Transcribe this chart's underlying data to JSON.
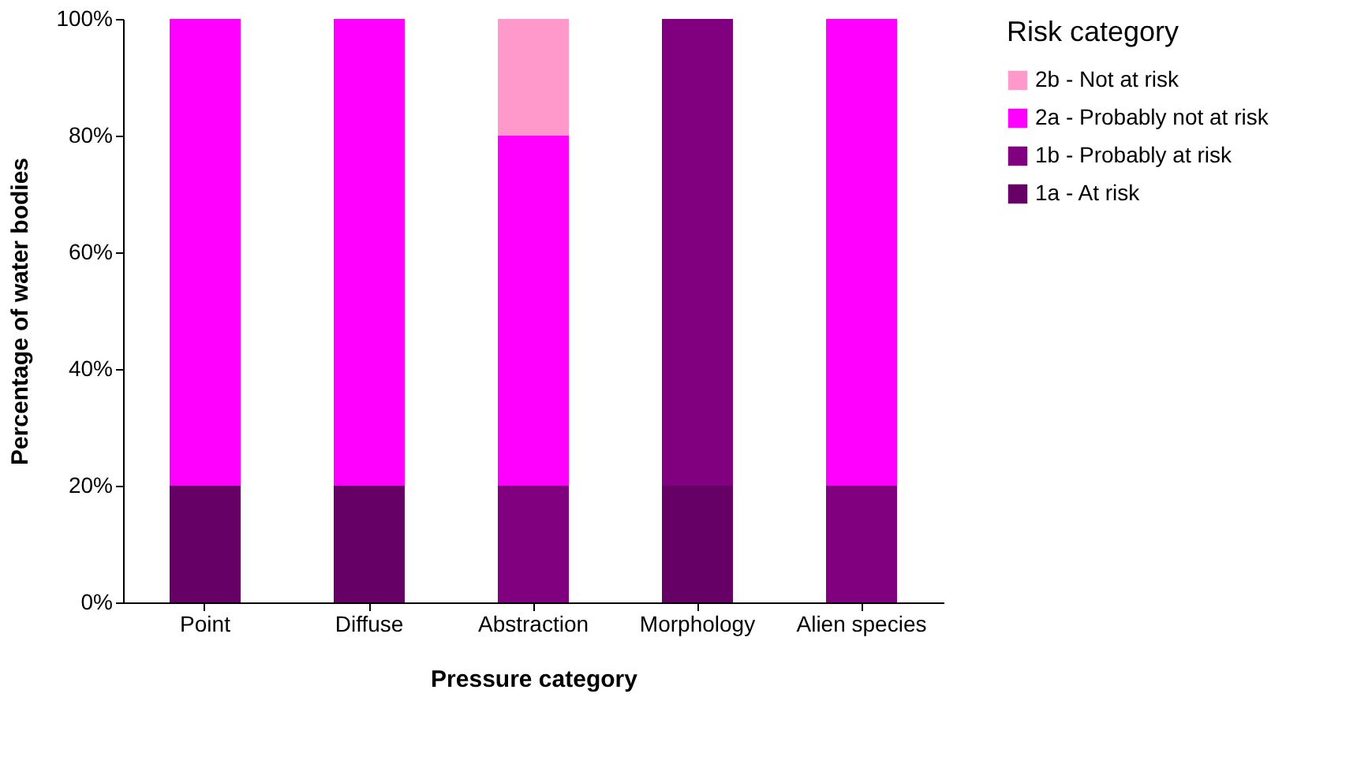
{
  "chart_data": {
    "type": "bar",
    "stacked": true,
    "xlabel": "Pressure category",
    "ylabel": "Percentage of water bodies",
    "legend_title": "Risk category",
    "legend": "right",
    "grid": false,
    "categories": [
      "Point",
      "Diffuse",
      "Abstraction",
      "Morphology",
      "Alien species"
    ],
    "ylim": [
      0,
      100
    ],
    "yticks": [
      {
        "value": 0,
        "label": "0%"
      },
      {
        "value": 20,
        "label": "20%"
      },
      {
        "value": 40,
        "label": "40%"
      },
      {
        "value": 60,
        "label": "60%"
      },
      {
        "value": 80,
        "label": "80%"
      },
      {
        "value": 100,
        "label": "100%"
      }
    ],
    "series": [
      {
        "name": "1a - At risk",
        "color": "#660066",
        "values": [
          20,
          20,
          0,
          20,
          0
        ]
      },
      {
        "name": "1b - Probably at risk",
        "color": "#800080",
        "values": [
          0,
          0,
          20,
          80,
          20
        ]
      },
      {
        "name": "2a - Probably not at risk",
        "color": "#ff00ff",
        "values": [
          80,
          80,
          60,
          0,
          80
        ]
      },
      {
        "name": "2b - Not at risk",
        "color": "#ff99cc",
        "values": [
          0,
          0,
          20,
          0,
          0
        ]
      }
    ]
  }
}
